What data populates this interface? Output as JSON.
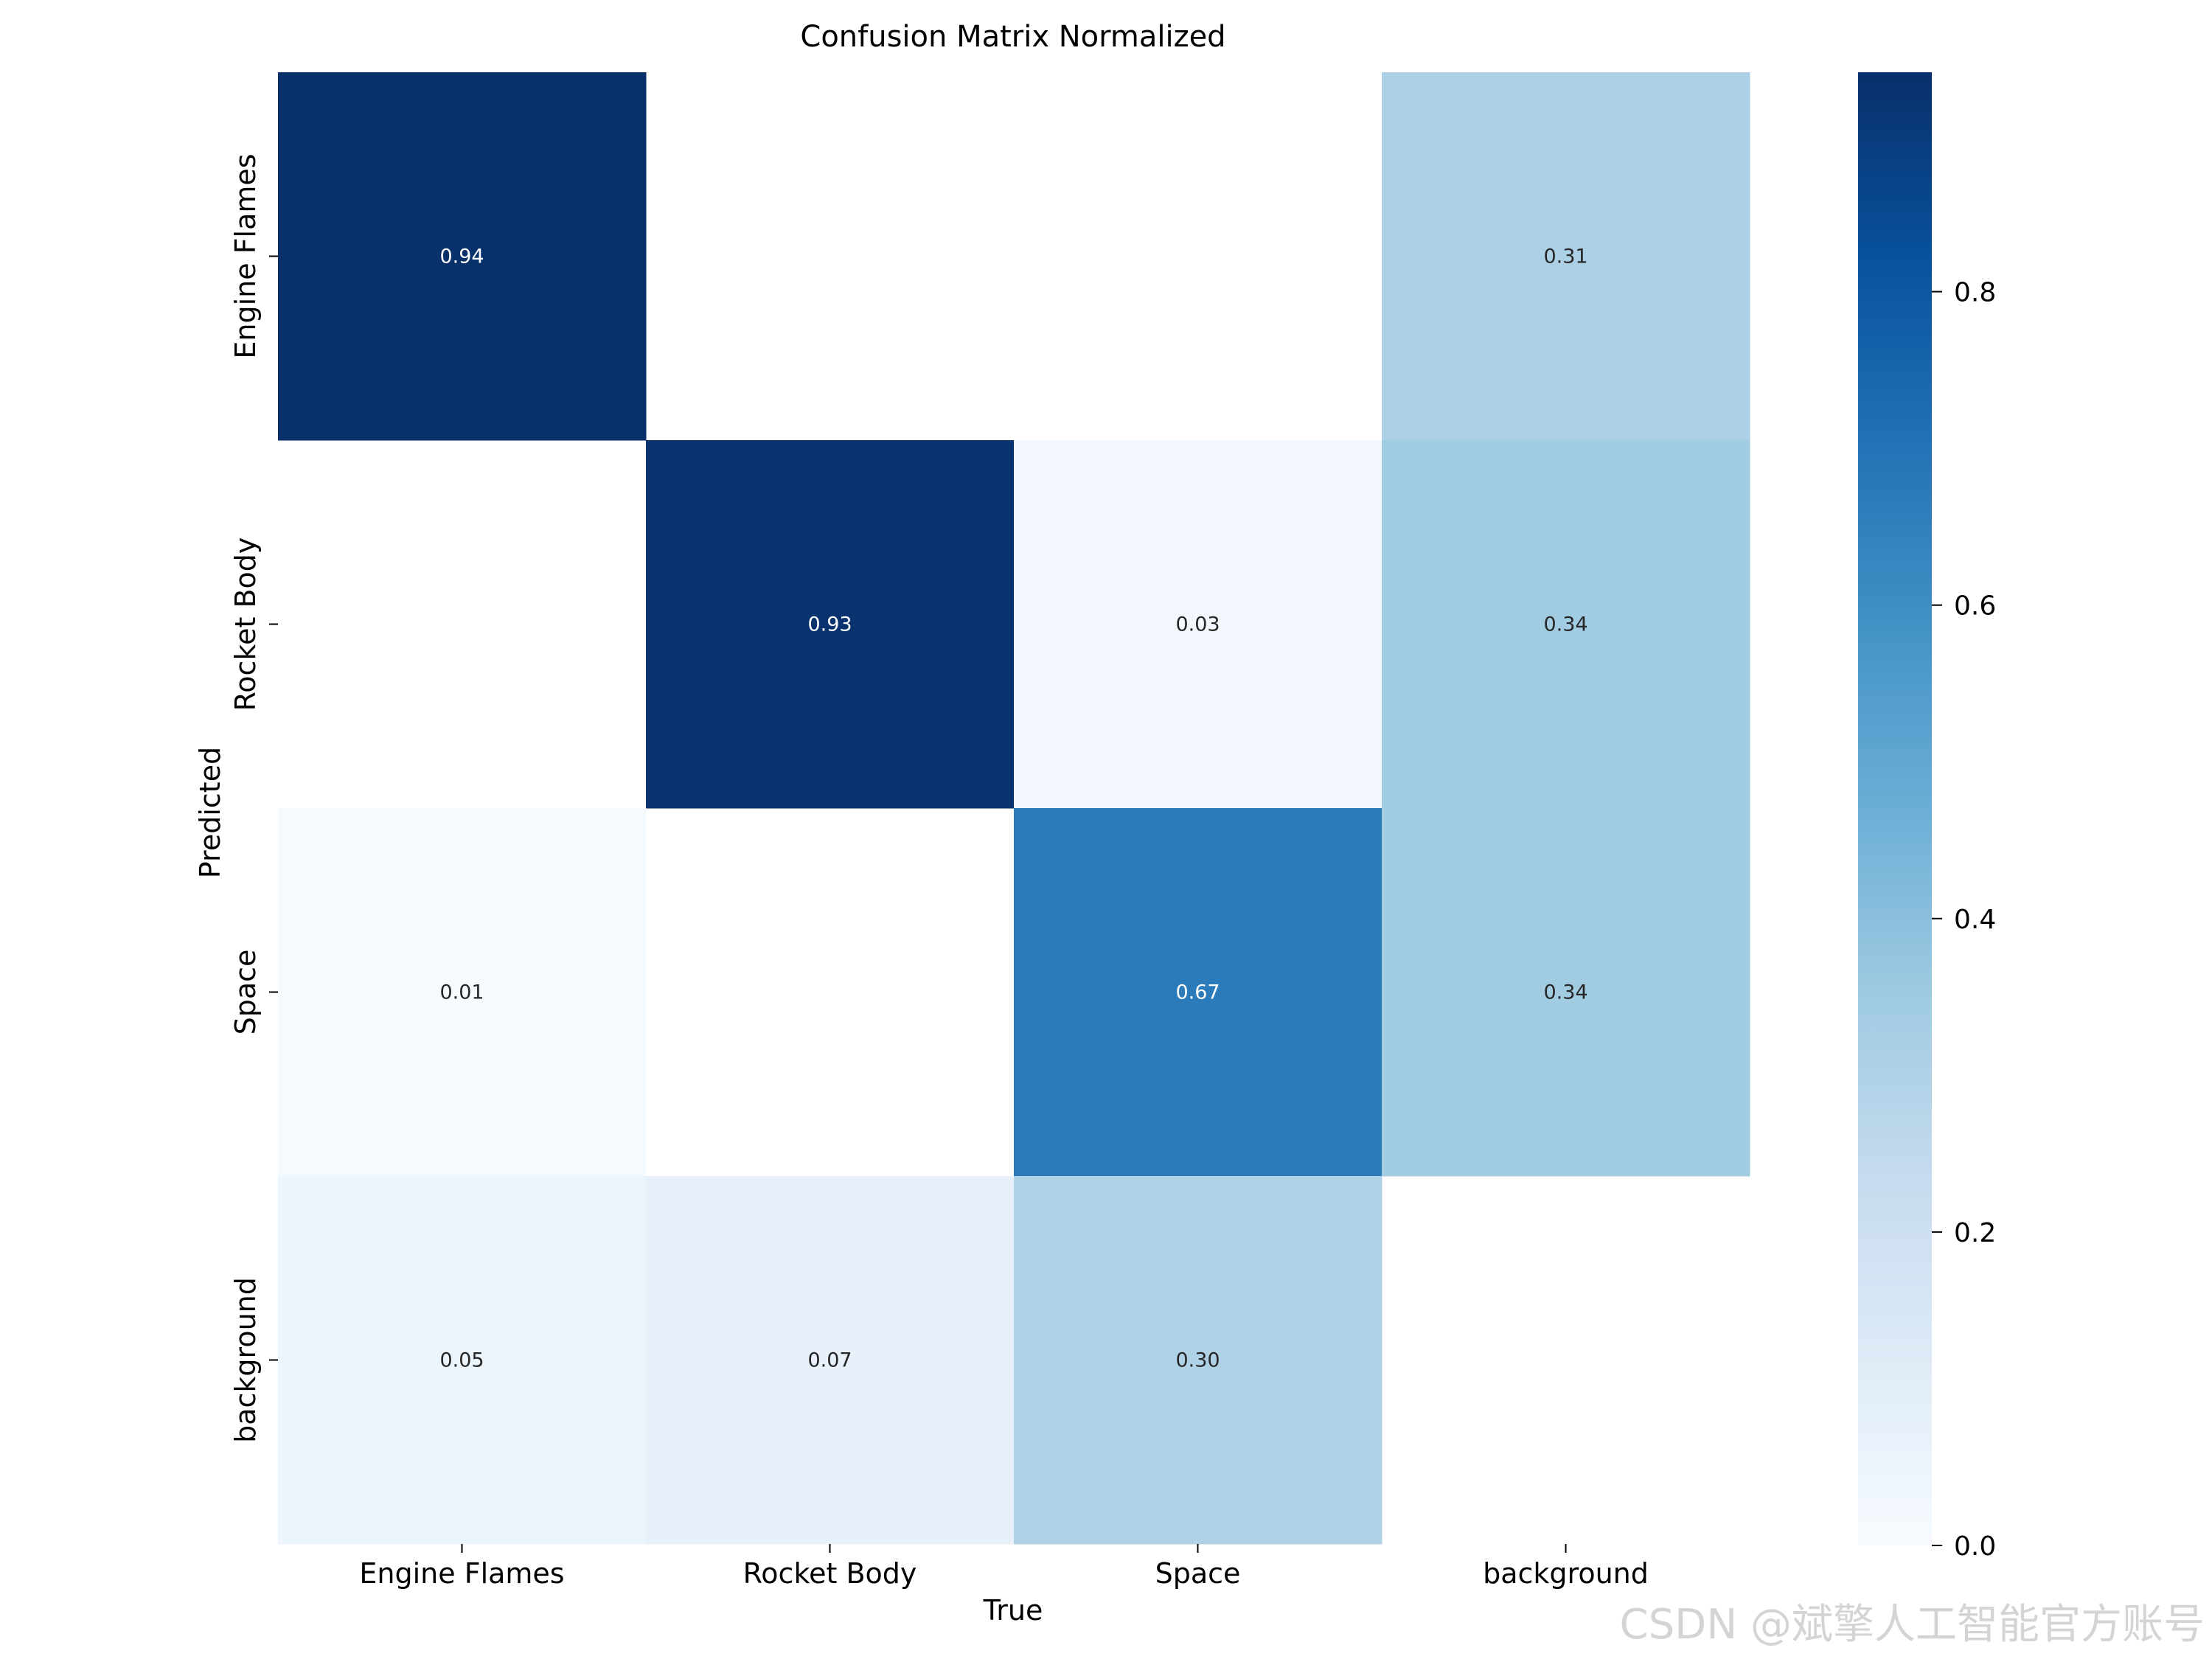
{
  "chart_data": {
    "type": "heatmap",
    "title": "Confusion Matrix Normalized",
    "xlabel": "True",
    "ylabel": "Predicted",
    "x_categories": [
      "Engine Flames",
      "Rocket Body",
      "Space",
      "background"
    ],
    "y_categories": [
      "Engine Flames",
      "Rocket Body",
      "Space",
      "background"
    ],
    "matrix": [
      [
        0.94,
        null,
        null,
        0.31
      ],
      [
        null,
        0.93,
        0.03,
        0.34
      ],
      [
        0.01,
        null,
        0.67,
        0.34
      ],
      [
        0.05,
        0.07,
        0.3,
        null
      ]
    ],
    "colormap": "Blues",
    "colorbar": {
      "min": 0.0,
      "max": 0.94,
      "ticks": [
        0.0,
        0.2,
        0.4,
        0.6,
        0.8
      ],
      "tick_labels": [
        "0.0",
        "0.2",
        "0.4",
        "0.6",
        "0.8"
      ]
    },
    "grid": false,
    "legend": "colorbar-right"
  },
  "watermark": "CSDN @斌擎人工智能官方账号"
}
